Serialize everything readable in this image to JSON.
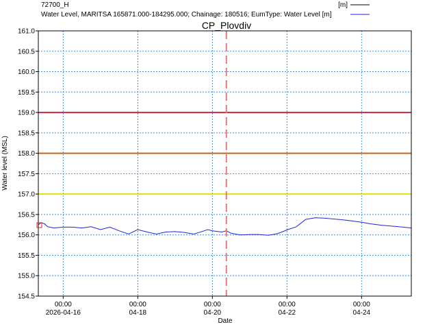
{
  "legend": {
    "header_item": "72700_H",
    "header_unit": "[m]",
    "series_item": "Water Level, MARITSA 165871.000-184295.000; Chainage: 180516; EumType: Water Level [m]"
  },
  "chart_data": {
    "type": "line",
    "title": "CP_Plovdiv",
    "xlabel": "Date",
    "ylabel": "Water level (MSL)",
    "ylim": [
      154.5,
      161.0
    ],
    "xlim": [
      "2026-04-15T08:00",
      "2026-04-25T08:00"
    ],
    "grid": true,
    "legend_placement": "top",
    "y_ticks": [
      "161.0",
      "160.5",
      "160.0",
      "159.5",
      "159.0",
      "158.5",
      "158.0",
      "157.5",
      "157.0",
      "156.5",
      "156.0",
      "155.5",
      "155.0",
      "154.5"
    ],
    "x_ticks": [
      {
        "date": "2026-04-16T00:00",
        "time": "00:00",
        "label": "2026-04-16"
      },
      {
        "date": "2026-04-18T00:00",
        "time": "00:00",
        "label": "04-18"
      },
      {
        "date": "2026-04-20T00:00",
        "time": "00:00",
        "label": "04-20"
      },
      {
        "date": "2026-04-22T00:00",
        "time": "00:00",
        "label": "04-22"
      },
      {
        "date": "2026-04-24T00:00",
        "time": "00:00",
        "label": "04-24"
      }
    ],
    "thresholds": [
      {
        "value": 159.0,
        "color": "#c8283c"
      },
      {
        "value": 158.0,
        "color": "#c86414"
      },
      {
        "value": 157.0,
        "color": "#e0e000"
      }
    ],
    "current_time": "2026-04-20T09:00",
    "series": [
      {
        "name": "Water Level, MARITSA 165871.000-184295.000; Chainage: 180516; EumType: Water Level [m]",
        "color": "#2222dd",
        "x": [
          "2026-04-15T08:00",
          "2026-04-15T10:00",
          "2026-04-15T12:00",
          "2026-04-15T14:00",
          "2026-04-15T18:00",
          "2026-04-16T00:00",
          "2026-04-16T06:00",
          "2026-04-16T12:00",
          "2026-04-16T18:00",
          "2026-04-17T00:00",
          "2026-04-17T06:00",
          "2026-04-17T12:00",
          "2026-04-17T18:00",
          "2026-04-18T00:00",
          "2026-04-18T06:00",
          "2026-04-18T12:00",
          "2026-04-18T18:00",
          "2026-04-19T00:00",
          "2026-04-19T06:00",
          "2026-04-19T12:00",
          "2026-04-19T18:00",
          "2026-04-19T21:00",
          "2026-04-20T00:00",
          "2026-04-20T06:00",
          "2026-04-20T09:00",
          "2026-04-20T12:00",
          "2026-04-20T18:00",
          "2026-04-21T00:00",
          "2026-04-21T06:00",
          "2026-04-21T12:00",
          "2026-04-21T18:00",
          "2026-04-22T00:00",
          "2026-04-22T06:00",
          "2026-04-22T12:00",
          "2026-04-22T18:00",
          "2026-04-23T00:00",
          "2026-04-23T06:00",
          "2026-04-23T12:00",
          "2026-04-23T18:00",
          "2026-04-24T00:00",
          "2026-04-24T06:00",
          "2026-04-24T12:00",
          "2026-04-24T18:00",
          "2026-04-25T00:00",
          "2026-04-25T08:00"
        ],
        "values": [
          156.25,
          156.3,
          156.27,
          156.2,
          156.17,
          156.19,
          156.19,
          156.17,
          156.2,
          156.13,
          156.19,
          156.1,
          156.02,
          156.13,
          156.07,
          156.02,
          156.07,
          156.08,
          156.06,
          156.02,
          156.09,
          156.13,
          156.1,
          156.07,
          156.1,
          156.04,
          156.0,
          156.01,
          156.01,
          155.99,
          156.03,
          156.12,
          156.2,
          156.38,
          156.42,
          156.41,
          156.39,
          156.37,
          156.34,
          156.31,
          156.27,
          156.24,
          156.22,
          156.2,
          156.17
        ]
      }
    ]
  }
}
